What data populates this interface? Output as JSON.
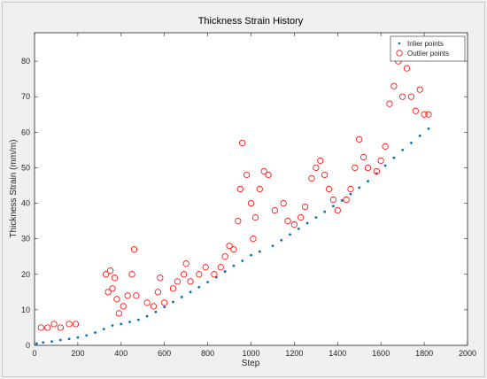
{
  "chart_data": {
    "type": "scatter",
    "title": "Thickness Strain History",
    "xlabel": "Step",
    "ylabel": "Thickness Strain (mm/m)",
    "xlim": [
      0,
      2000
    ],
    "ylim": [
      0,
      88
    ],
    "xticks": [
      "0",
      "200",
      "400",
      "600",
      "800",
      "1000",
      "1200",
      "1400",
      "1600",
      "1800",
      "2000"
    ],
    "yticks": [
      "0",
      "10",
      "20",
      "30",
      "40",
      "50",
      "60",
      "70",
      "80"
    ],
    "legend": {
      "position": "top-right",
      "entries": [
        "Inlier points",
        "Outlier points"
      ]
    },
    "series": [
      {
        "name": "Inlier points",
        "marker": "dot",
        "color": "#0072bd",
        "points": [
          [
            10,
            0.5
          ],
          [
            40,
            0.8
          ],
          [
            80,
            1.1
          ],
          [
            120,
            1.5
          ],
          [
            160,
            1.8
          ],
          [
            200,
            2.2
          ],
          [
            240,
            2.8
          ],
          [
            280,
            3.6
          ],
          [
            320,
            4.6
          ],
          [
            360,
            5.6
          ],
          [
            400,
            6.0
          ],
          [
            440,
            6.6
          ],
          [
            480,
            7.2
          ],
          [
            520,
            8.2
          ],
          [
            560,
            9.4
          ],
          [
            600,
            10.8
          ],
          [
            640,
            12.2
          ],
          [
            680,
            13.6
          ],
          [
            720,
            15.0
          ],
          [
            760,
            16.4
          ],
          [
            800,
            17.8
          ],
          [
            840,
            19.2
          ],
          [
            880,
            20.8
          ],
          [
            920,
            22.4
          ],
          [
            960,
            23.8
          ],
          [
            1000,
            25.4
          ],
          [
            1040,
            26.4
          ],
          [
            1100,
            28.0
          ],
          [
            1140,
            29.6
          ],
          [
            1180,
            31.2
          ],
          [
            1220,
            32.8
          ],
          [
            1260,
            34.4
          ],
          [
            1300,
            36.0
          ],
          [
            1340,
            37.6
          ],
          [
            1380,
            39.2
          ],
          [
            1420,
            40.8
          ],
          [
            1460,
            42.6
          ],
          [
            1500,
            44.4
          ],
          [
            1540,
            46.2
          ],
          [
            1580,
            48.4
          ],
          [
            1620,
            50.6
          ],
          [
            1660,
            52.8
          ],
          [
            1700,
            55.0
          ],
          [
            1740,
            57.0
          ],
          [
            1780,
            59.0
          ],
          [
            1820,
            61.0
          ]
        ]
      },
      {
        "name": "Outlier points",
        "marker": "circle",
        "color": "#ff0000",
        "points": [
          [
            30,
            5
          ],
          [
            60,
            5
          ],
          [
            90,
            6
          ],
          [
            120,
            5
          ],
          [
            160,
            6
          ],
          [
            190,
            6
          ],
          [
            330,
            20
          ],
          [
            340,
            15
          ],
          [
            350,
            21
          ],
          [
            360,
            16
          ],
          [
            370,
            19
          ],
          [
            380,
            13
          ],
          [
            390,
            9
          ],
          [
            410,
            11
          ],
          [
            430,
            14
          ],
          [
            450,
            20
          ],
          [
            460,
            27
          ],
          [
            470,
            14
          ],
          [
            520,
            12
          ],
          [
            550,
            11
          ],
          [
            570,
            15
          ],
          [
            580,
            19
          ],
          [
            600,
            12
          ],
          [
            640,
            16
          ],
          [
            660,
            18
          ],
          [
            690,
            20
          ],
          [
            700,
            23
          ],
          [
            720,
            18
          ],
          [
            760,
            20
          ],
          [
            790,
            22
          ],
          [
            830,
            20
          ],
          [
            860,
            22
          ],
          [
            880,
            25
          ],
          [
            900,
            28
          ],
          [
            920,
            27
          ],
          [
            940,
            35
          ],
          [
            950,
            44
          ],
          [
            960,
            57
          ],
          [
            980,
            48
          ],
          [
            1000,
            40
          ],
          [
            1010,
            30
          ],
          [
            1020,
            36
          ],
          [
            1040,
            44
          ],
          [
            1060,
            49
          ],
          [
            1080,
            48
          ],
          [
            1110,
            38
          ],
          [
            1150,
            40
          ],
          [
            1170,
            35
          ],
          [
            1200,
            34
          ],
          [
            1230,
            36
          ],
          [
            1250,
            39
          ],
          [
            1280,
            47
          ],
          [
            1300,
            50
          ],
          [
            1320,
            52
          ],
          [
            1340,
            48
          ],
          [
            1360,
            44
          ],
          [
            1380,
            41
          ],
          [
            1400,
            38
          ],
          [
            1440,
            41
          ],
          [
            1460,
            44
          ],
          [
            1480,
            50
          ],
          [
            1500,
            58
          ],
          [
            1520,
            53
          ],
          [
            1540,
            50
          ],
          [
            1580,
            49
          ],
          [
            1600,
            52
          ],
          [
            1620,
            56
          ],
          [
            1640,
            68
          ],
          [
            1660,
            73
          ],
          [
            1680,
            80
          ],
          [
            1700,
            70
          ],
          [
            1720,
            78
          ],
          [
            1740,
            70
          ],
          [
            1760,
            66
          ],
          [
            1780,
            72
          ],
          [
            1800,
            65
          ],
          [
            1820,
            65
          ]
        ]
      }
    ]
  }
}
